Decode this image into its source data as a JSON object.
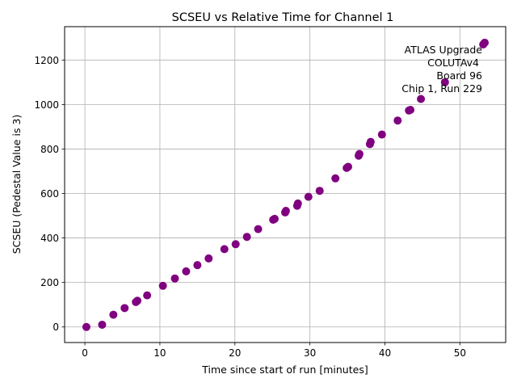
{
  "chart_data": {
    "type": "scatter",
    "title": "SCSEU vs Relative Time for Channel 1",
    "xlabel": "Time since start of run [minutes]",
    "ylabel": "SCSEU (Pedestal Value is 3)",
    "xlim": [
      -2.7,
      56.1
    ],
    "ylim": [
      -70,
      1350
    ],
    "xticks": [
      0,
      10,
      20,
      30,
      40,
      50
    ],
    "yticks": [
      0,
      200,
      400,
      600,
      800,
      1000,
      1200
    ],
    "grid": true,
    "marker_color": "#800080",
    "annotation": {
      "lines": [
        "ATLAS Upgrade",
        "COLUTAv4",
        "Board 96",
        "Chip 1, Run 229"
      ],
      "placement": "top-right"
    },
    "points": [
      [
        0.2,
        0
      ],
      [
        2.3,
        10
      ],
      [
        3.8,
        55
      ],
      [
        5.3,
        85
      ],
      [
        6.8,
        112
      ],
      [
        7.0,
        118
      ],
      [
        8.3,
        142
      ],
      [
        10.4,
        185
      ],
      [
        12.0,
        218
      ],
      [
        13.5,
        250
      ],
      [
        15.0,
        278
      ],
      [
        16.5,
        308
      ],
      [
        18.6,
        350
      ],
      [
        20.1,
        372
      ],
      [
        21.6,
        405
      ],
      [
        23.1,
        440
      ],
      [
        25.1,
        482
      ],
      [
        25.3,
        486
      ],
      [
        26.7,
        515
      ],
      [
        26.8,
        522
      ],
      [
        28.3,
        545
      ],
      [
        28.4,
        555
      ],
      [
        29.8,
        585
      ],
      [
        31.3,
        612
      ],
      [
        33.4,
        668
      ],
      [
        34.9,
        715
      ],
      [
        35.1,
        720
      ],
      [
        36.5,
        770
      ],
      [
        36.6,
        778
      ],
      [
        38.0,
        822
      ],
      [
        38.1,
        832
      ],
      [
        39.6,
        865
      ],
      [
        41.7,
        928
      ],
      [
        43.2,
        973
      ],
      [
        43.4,
        976
      ],
      [
        44.8,
        1025
      ],
      [
        48.0,
        1100
      ],
      [
        53.1,
        1270
      ],
      [
        53.3,
        1278
      ]
    ]
  }
}
